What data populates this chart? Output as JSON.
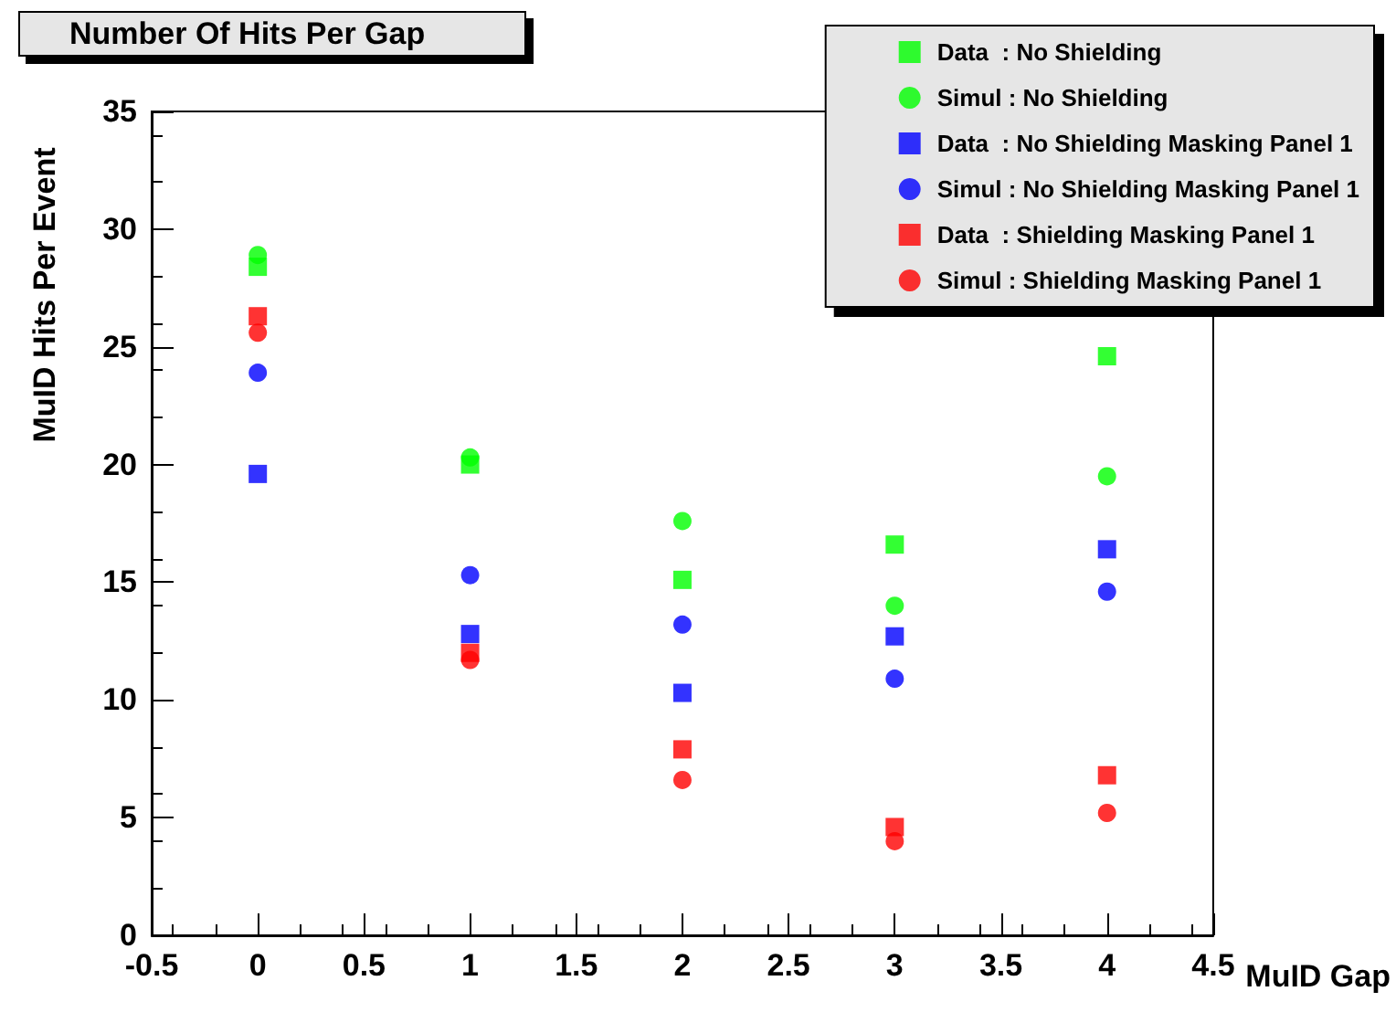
{
  "chart_data": {
    "type": "scatter",
    "title": "Number Of Hits Per Gap",
    "xlabel": "MuID Gap",
    "ylabel": "MuID Hits Per Event",
    "x": [
      0,
      1,
      2,
      3,
      4
    ],
    "series": [
      {
        "name": "Data  : No Shielding",
        "color": "#00ff00",
        "marker": "square",
        "values": [
          28.4,
          20.0,
          15.1,
          16.6,
          24.6
        ]
      },
      {
        "name": "Simul : No Shielding",
        "color": "#00ff00",
        "marker": "circle",
        "values": [
          28.9,
          20.3,
          17.6,
          14.0,
          19.5
        ]
      },
      {
        "name": "Data  : No Shielding Masking Panel 1",
        "color": "#0000ff",
        "marker": "square",
        "values": [
          19.6,
          12.8,
          10.3,
          12.7,
          16.4
        ]
      },
      {
        "name": "Simul : No Shielding Masking Panel 1",
        "color": "#0000ff",
        "marker": "circle",
        "values": [
          23.9,
          15.3,
          13.2,
          10.9,
          14.6
        ]
      },
      {
        "name": "Data  : Shielding Masking Panel 1",
        "color": "#ff0000",
        "marker": "square",
        "values": [
          26.3,
          12.0,
          7.9,
          4.6,
          6.8
        ]
      },
      {
        "name": "Simul : Shielding Masking Panel 1",
        "color": "#ff0000",
        "marker": "circle",
        "values": [
          25.6,
          11.7,
          6.6,
          4.0,
          5.2
        ]
      }
    ],
    "xlim": [
      -0.5,
      4.5
    ],
    "xticks": [
      -0.5,
      0,
      0.5,
      1,
      1.5,
      2,
      2.5,
      3,
      3.5,
      4,
      4.5
    ],
    "ylim": [
      0,
      35
    ],
    "yticks": [
      0,
      5,
      10,
      15,
      20,
      25,
      30,
      35
    ],
    "grid": false,
    "legend": "top right"
  }
}
